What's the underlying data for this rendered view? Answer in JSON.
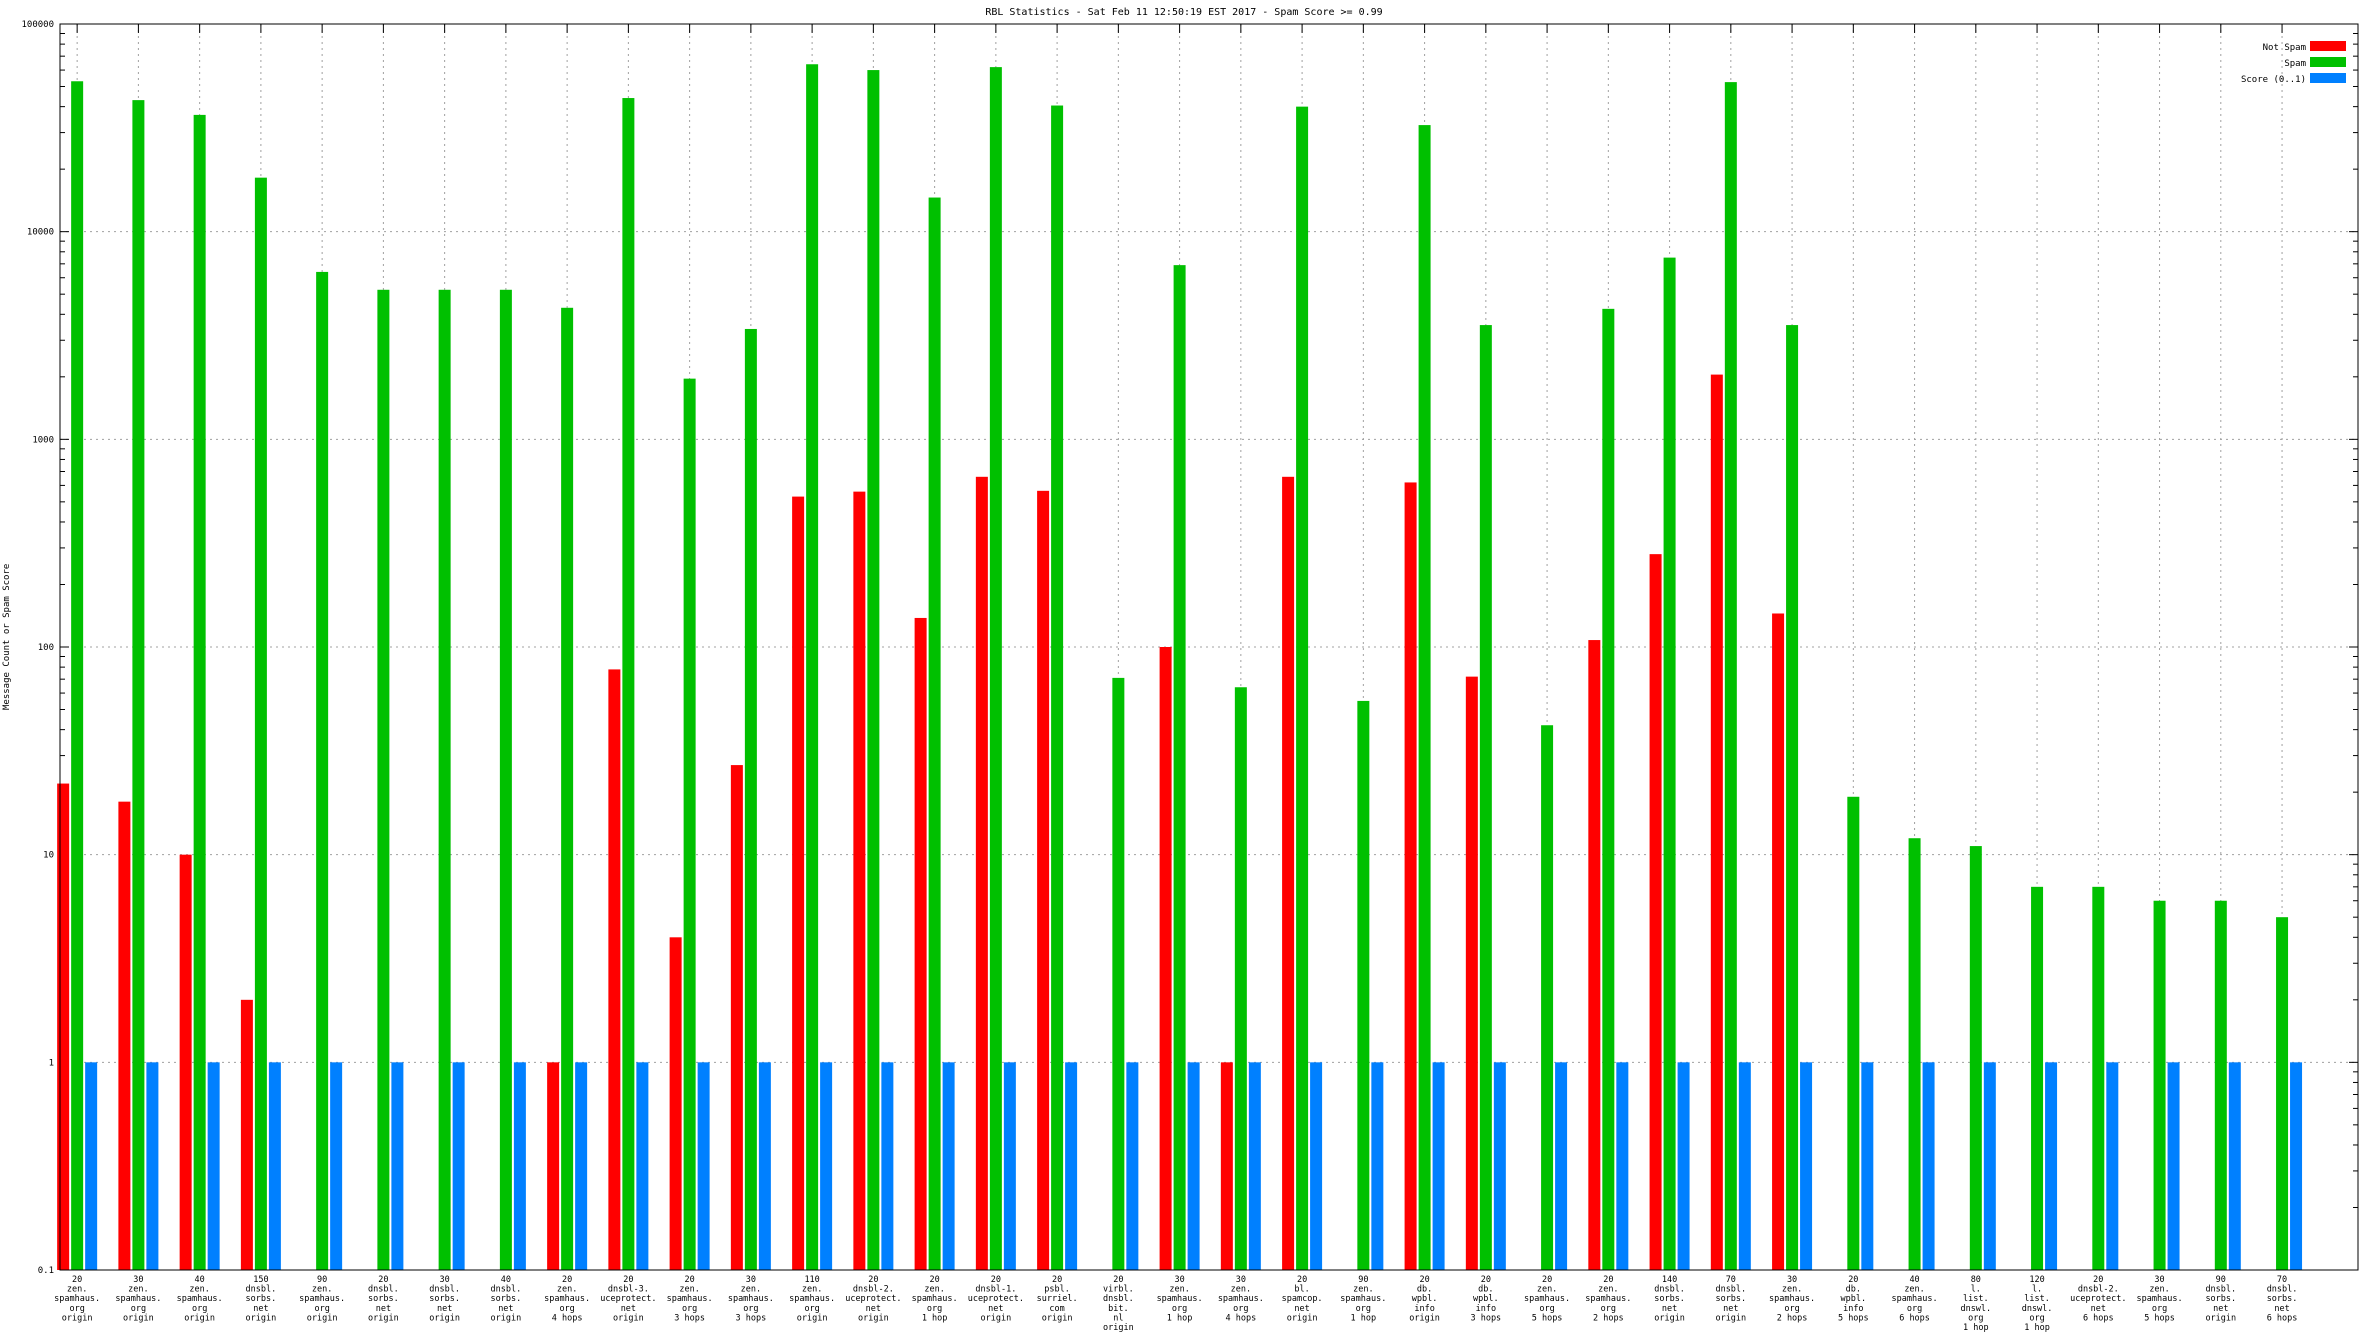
{
  "chart_data": {
    "type": "bar",
    "title": "RBL Statistics - Sat Feb 11 12:50:19 EST 2017 - Spam Score >= 0.99",
    "xlabel": "",
    "ylabel": "Message Count or Spam Score",
    "yscale": "log",
    "ylim": [
      0.1,
      100000
    ],
    "yticks": [
      "0.1",
      "1",
      "10",
      "100",
      "1000",
      "10000",
      "100000"
    ],
    "grid": true,
    "legend_position": "top-right",
    "categories": [
      [
        "20",
        "zen.",
        "spamhaus.",
        "org",
        "origin"
      ],
      [
        "30",
        "zen.",
        "spamhaus.",
        "org",
        "origin"
      ],
      [
        "40",
        "zen.",
        "spamhaus.",
        "org",
        "origin"
      ],
      [
        "150",
        "dnsbl.",
        "sorbs.",
        "net",
        "origin"
      ],
      [
        "90",
        "zen.",
        "spamhaus.",
        "org",
        "origin"
      ],
      [
        "20",
        "dnsbl.",
        "sorbs.",
        "net",
        "origin"
      ],
      [
        "30",
        "dnsbl.",
        "sorbs.",
        "net",
        "origin"
      ],
      [
        "40",
        "dnsbl.",
        "sorbs.",
        "net",
        "origin"
      ],
      [
        "20",
        "zen.",
        "spamhaus.",
        "org",
        "4 hops"
      ],
      [
        "20",
        "dnsbl-3.",
        "uceprotect.",
        "net",
        "origin"
      ],
      [
        "20",
        "zen.",
        "spamhaus.",
        "org",
        "3 hops"
      ],
      [
        "30",
        "zen.",
        "spamhaus.",
        "org",
        "3 hops"
      ],
      [
        "110",
        "zen.",
        "spamhaus.",
        "org",
        "origin"
      ],
      [
        "20",
        "dnsbl-2.",
        "uceprotect.",
        "net",
        "origin"
      ],
      [
        "20",
        "zen.",
        "spamhaus.",
        "org",
        "1 hop"
      ],
      [
        "20",
        "dnsbl-1.",
        "uceprotect.",
        "net",
        "origin"
      ],
      [
        "20",
        "psbl.",
        "surriel.",
        "com",
        "origin"
      ],
      [
        "20",
        "virbl.",
        "dnsbl.",
        "bit.",
        "nl",
        "origin"
      ],
      [
        "30",
        "zen.",
        "spamhaus.",
        "org",
        "1 hop"
      ],
      [
        "30",
        "zen.",
        "spamhaus.",
        "org",
        "4 hops"
      ],
      [
        "20",
        "bl.",
        "spamcop.",
        "net",
        "origin"
      ],
      [
        "90",
        "zen.",
        "spamhaus.",
        "org",
        "1 hop"
      ],
      [
        "20",
        "db.",
        "wpbl.",
        "info",
        "origin"
      ],
      [
        "20",
        "db.",
        "wpbl.",
        "info",
        "3 hops"
      ],
      [
        "20",
        "zen.",
        "spamhaus.",
        "org",
        "5 hops"
      ],
      [
        "20",
        "zen.",
        "spamhaus.",
        "org",
        "2 hops"
      ],
      [
        "140",
        "dnsbl.",
        "sorbs.",
        "net",
        "origin"
      ],
      [
        "70",
        "dnsbl.",
        "sorbs.",
        "net",
        "origin"
      ],
      [
        "30",
        "zen.",
        "spamhaus.",
        "org",
        "2 hops"
      ],
      [
        "20",
        "db.",
        "wpbl.",
        "info",
        "5 hops"
      ],
      [
        "40",
        "zen.",
        "spamhaus.",
        "org",
        "6 hops"
      ],
      [
        "80",
        "l.",
        "list.",
        "dnswl.",
        "org",
        "1 hop"
      ],
      [
        "120",
        "l.",
        "list.",
        "dnswl.",
        "org",
        "1 hop"
      ],
      [
        "20",
        "dnsbl-2.",
        "uceprotect.",
        "net",
        "6 hops"
      ],
      [
        "30",
        "zen.",
        "spamhaus.",
        "org",
        "5 hops"
      ],
      [
        "90",
        "dnsbl.",
        "sorbs.",
        "net",
        "origin"
      ],
      [
        "70",
        "dnsbl.",
        "sorbs.",
        "net",
        "6 hops"
      ]
    ],
    "series": [
      {
        "name": "Not Spam",
        "color": "#ff0000",
        "values": [
          22,
          18,
          10,
          2,
          null,
          null,
          null,
          null,
          1,
          78,
          4,
          27,
          530,
          560,
          138,
          660,
          565,
          null,
          100,
          1,
          660,
          null,
          620,
          72,
          null,
          108,
          280,
          2050,
          145,
          null,
          null,
          null,
          null,
          null,
          null,
          null,
          null
        ]
      },
      {
        "name": "Spam",
        "color": "#00c000",
        "values": [
          53000,
          43000,
          36500,
          18200,
          6400,
          5250,
          5250,
          5250,
          4300,
          44000,
          1960,
          3400,
          64000,
          60000,
          14600,
          62000,
          40500,
          71,
          6900,
          64,
          40000,
          55,
          32600,
          3550,
          42,
          4250,
          7500,
          52500,
          3550,
          19,
          12,
          11,
          7,
          7,
          6,
          6,
          5
        ]
      },
      {
        "name": "Score (0..1)",
        "color": "#0080ff",
        "values": [
          1,
          1,
          1,
          1,
          1,
          1,
          1,
          1,
          1,
          1,
          1,
          1,
          1,
          1,
          1,
          1,
          1,
          1,
          1,
          1,
          1,
          1,
          1,
          1,
          1,
          1,
          1,
          1,
          1,
          1,
          1,
          1,
          1,
          1,
          1,
          1,
          1
        ]
      }
    ]
  }
}
